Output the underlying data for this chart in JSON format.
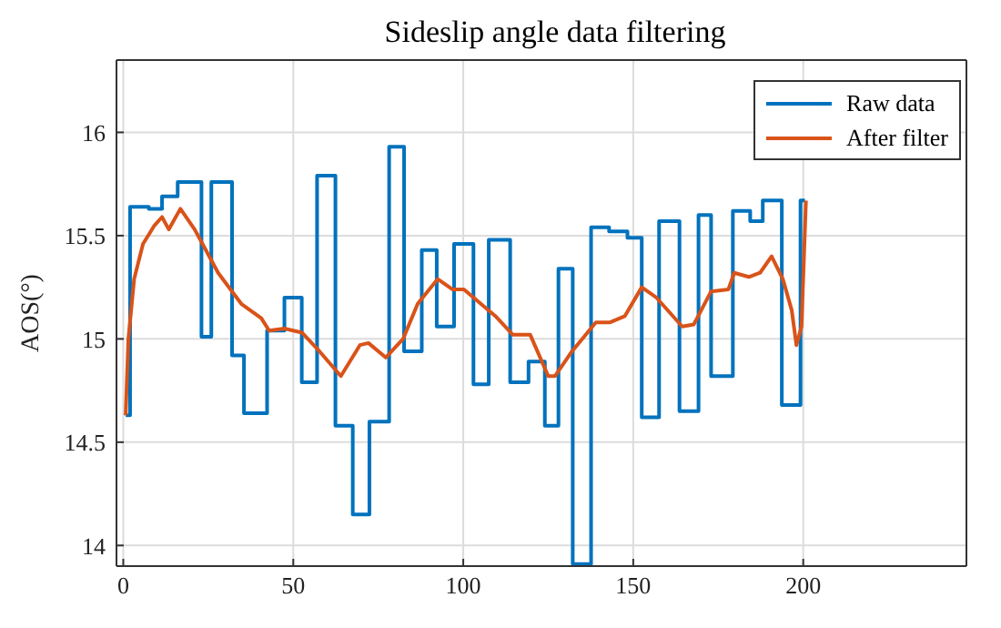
{
  "chart_data": {
    "type": "line",
    "title": "Sideslip angle data filtering",
    "ylabel": "AOS(°)",
    "xlim": [
      -2,
      248
    ],
    "ylim": [
      13.9,
      16.35
    ],
    "xticks": [
      0,
      50,
      100,
      150,
      200
    ],
    "yticks": [
      14,
      14.5,
      15,
      15.5,
      16
    ],
    "grid": true,
    "legend": "top right",
    "marker": "none",
    "line_style": "solid",
    "series": [
      {
        "name": "Raw data",
        "type": "step",
        "color": "#0072bd",
        "x": [
          0.7,
          2,
          7.5,
          11.4,
          16,
          23,
          25.9,
          32,
          35.5,
          42.3,
          47.4,
          52.5,
          57,
          62.4,
          67.5,
          72.4,
          78.2,
          82.6,
          87.8,
          92.2,
          97.3,
          103,
          107.5,
          113.8,
          119.2,
          124,
          128,
          132.2,
          137.6,
          142.9,
          148.3,
          152.5,
          157.6,
          163.6,
          169.2,
          172.9,
          179.3,
          184.4,
          188.1,
          193.7,
          199.2,
          200.5
        ],
        "values": [
          14.63,
          15.64,
          15.63,
          15.69,
          15.76,
          15.01,
          15.76,
          14.92,
          14.64,
          15.04,
          15.2,
          14.79,
          15.79,
          14.58,
          14.15,
          14.6,
          15.93,
          14.94,
          15.43,
          15.06,
          15.46,
          14.78,
          15.48,
          14.79,
          14.89,
          14.58,
          15.34,
          13.91,
          15.54,
          15.52,
          15.49,
          14.62,
          15.57,
          14.65,
          15.6,
          14.82,
          15.62,
          15.57,
          15.67,
          14.68,
          15.67,
          15.67
        ]
      },
      {
        "name": "After filter",
        "type": "line",
        "color": "#d95319",
        "x": [
          0.7,
          1.5,
          3.2,
          5.8,
          9.2,
          11.4,
          13.4,
          16.8,
          21,
          27.9,
          34.7,
          40.6,
          42.9,
          47.4,
          52.6,
          57.7,
          64,
          69.6,
          72.1,
          77.2,
          82.3,
          86.6,
          92.5,
          96.8,
          100.2,
          109.5,
          114.6,
          119.7,
          125,
          127,
          132,
          139,
          143.2,
          147.5,
          152.5,
          156.8,
          164.4,
          167.8,
          172.9,
          178,
          179.7,
          184,
          187.3,
          190.7,
          194,
          196.6,
          198,
          199.5,
          200.8
        ],
        "values": [
          14.63,
          15.0,
          15.29,
          15.46,
          15.55,
          15.59,
          15.53,
          15.63,
          15.53,
          15.32,
          15.17,
          15.1,
          15.04,
          15.05,
          15.03,
          14.94,
          14.82,
          14.97,
          14.98,
          14.91,
          15.0,
          15.17,
          15.29,
          15.24,
          15.24,
          15.11,
          15.02,
          15.02,
          14.82,
          14.82,
          14.94,
          15.08,
          15.08,
          15.11,
          15.25,
          15.2,
          15.06,
          15.07,
          15.23,
          15.24,
          15.32,
          15.3,
          15.32,
          15.4,
          15.29,
          15.14,
          14.97,
          15.06,
          15.67
        ]
      }
    ]
  }
}
